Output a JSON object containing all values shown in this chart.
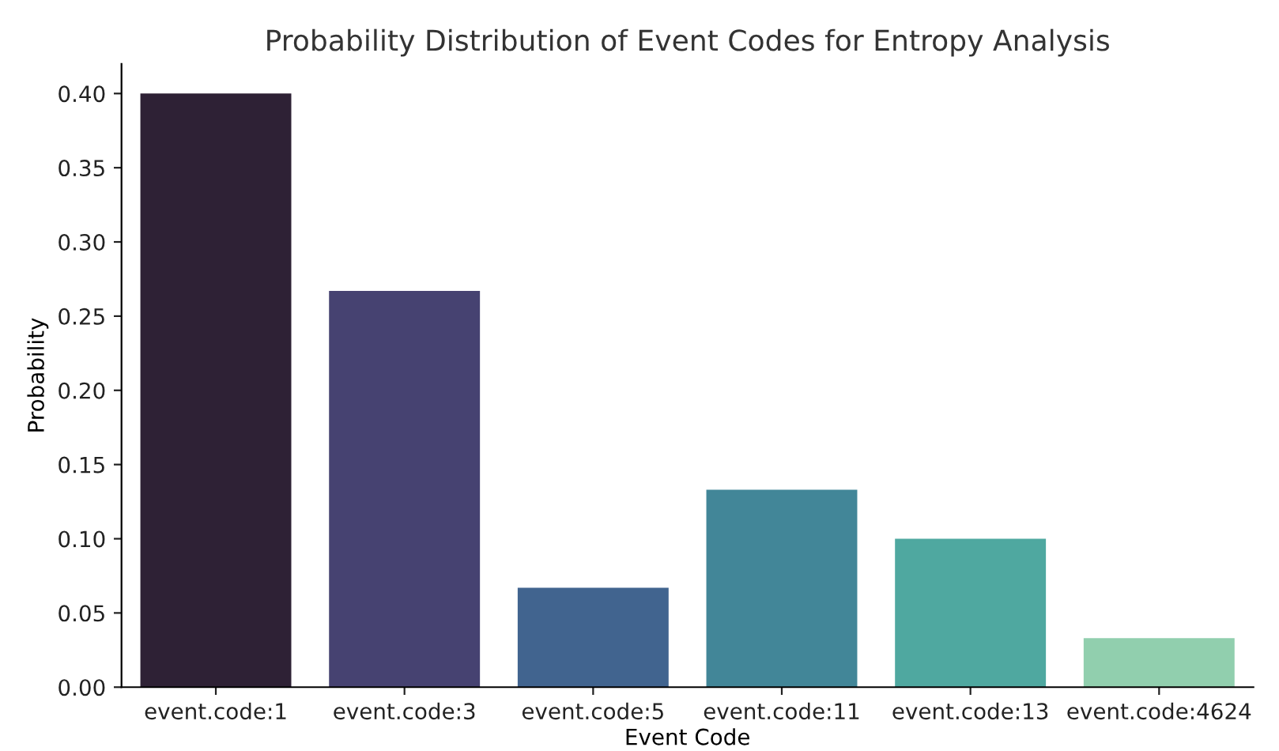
{
  "chart_data": {
    "type": "bar",
    "title": "Probability Distribution of Event Codes for Entropy Analysis",
    "xlabel": "Event Code",
    "ylabel": "Probability",
    "categories": [
      "event.code:1",
      "event.code:3",
      "event.code:5",
      "event.code:11",
      "event.code:13",
      "event.code:4624"
    ],
    "values": [
      0.4,
      0.267,
      0.067,
      0.133,
      0.1,
      0.033
    ],
    "colors": [
      "#2e2135",
      "#464271",
      "#41648f",
      "#428698",
      "#4fa8a0",
      "#91cfae"
    ],
    "ylim": [
      0,
      0.42
    ],
    "yticks": [
      {
        "value": 0,
        "label": "0.00"
      },
      {
        "value": 0.05,
        "label": "0.05"
      },
      {
        "value": 0.1,
        "label": "0.10"
      },
      {
        "value": 0.15,
        "label": "0.15"
      },
      {
        "value": 0.2,
        "label": "0.20"
      },
      {
        "value": 0.25,
        "label": "0.25"
      },
      {
        "value": 0.3,
        "label": "0.30"
      },
      {
        "value": 0.35,
        "label": "0.35"
      },
      {
        "value": 0.4,
        "label": "0.40"
      }
    ],
    "grid": false
  }
}
